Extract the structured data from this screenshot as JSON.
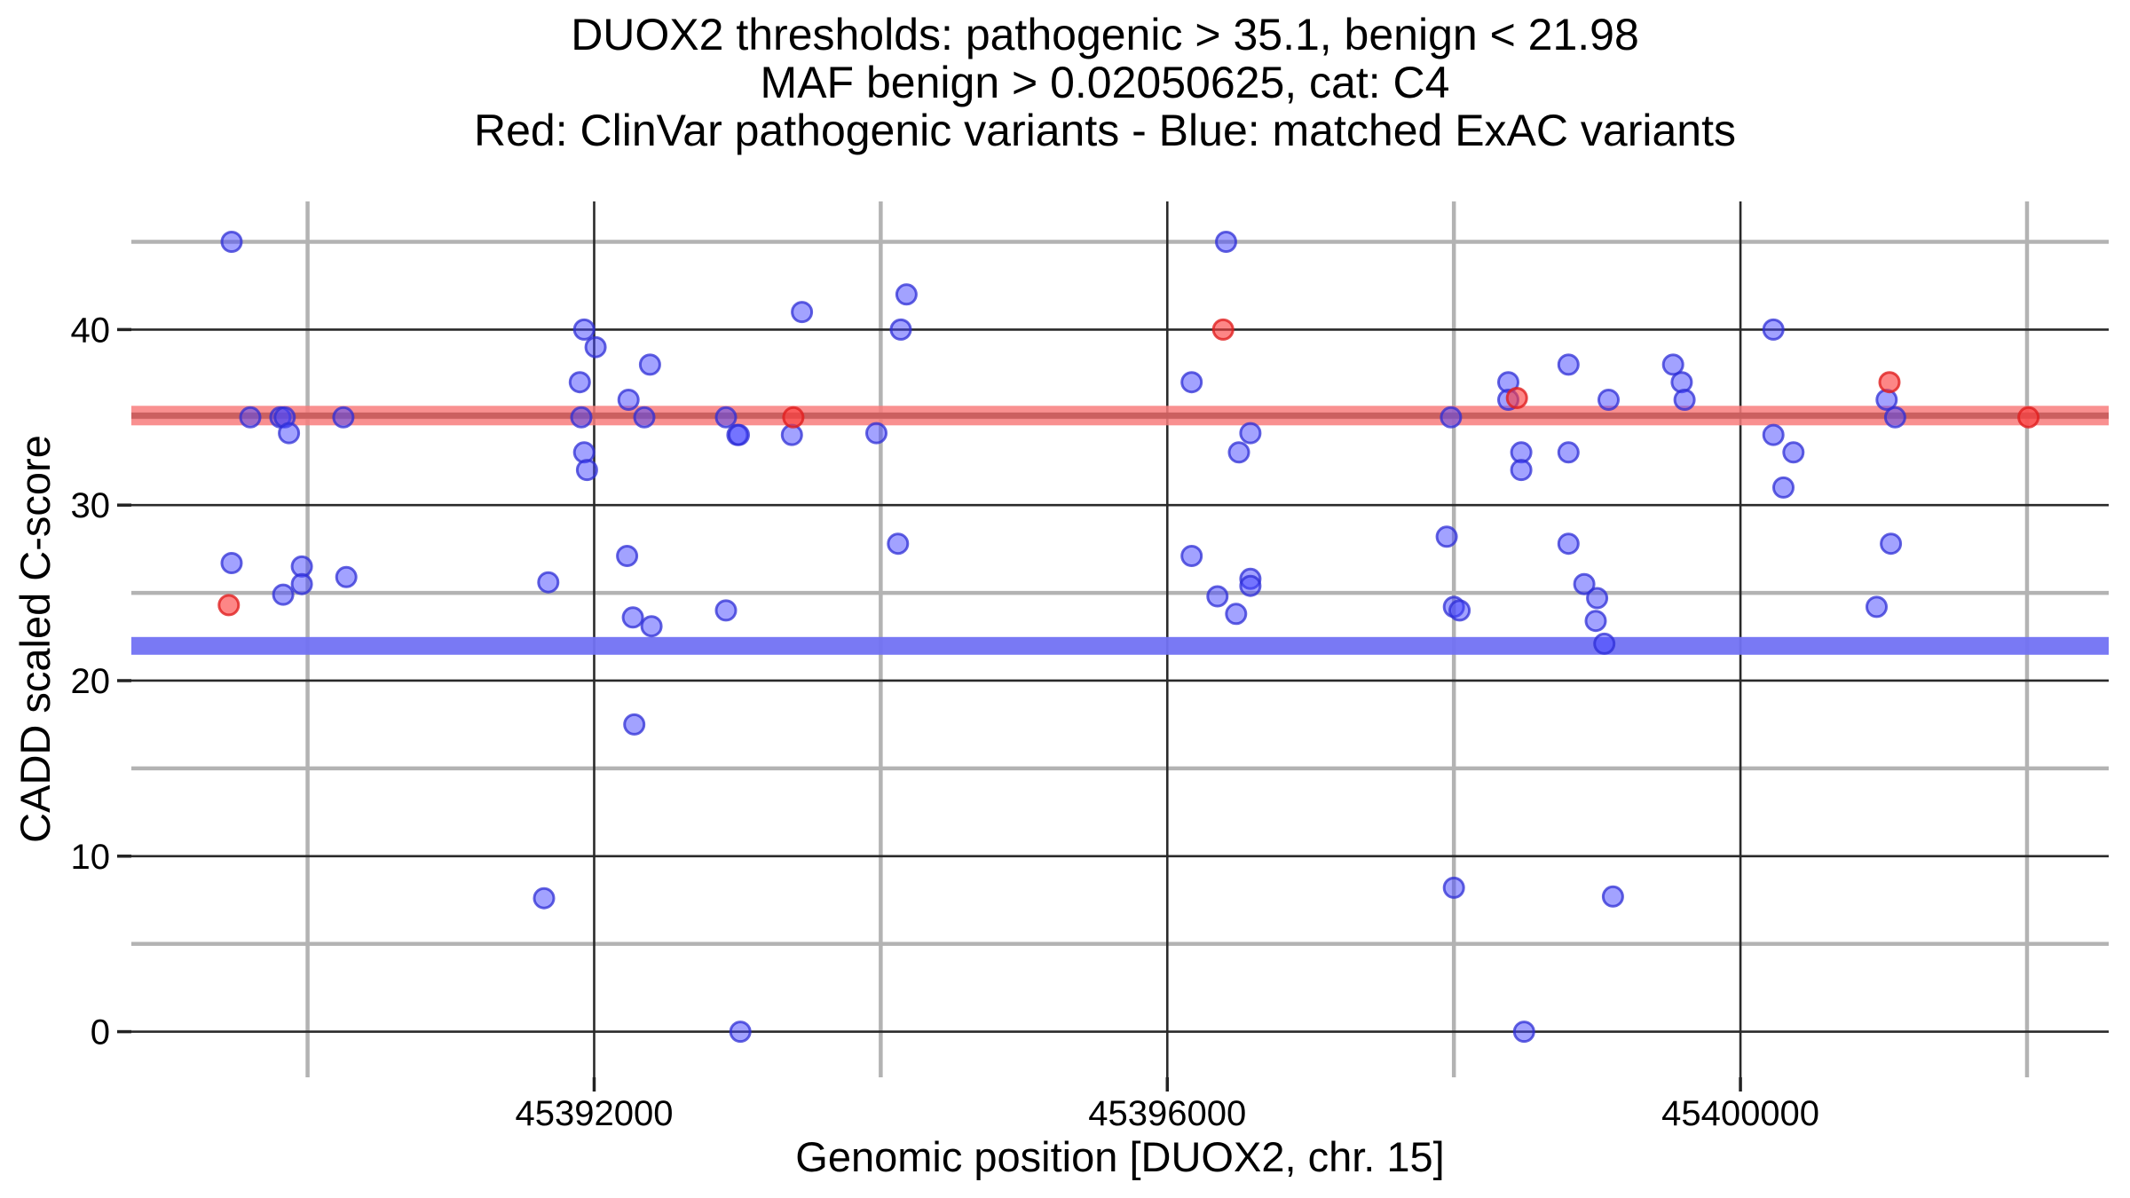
{
  "title": {
    "line1": "DUOX2 thresholds: pathogenic > 35.1, benign < 21.98",
    "line2": "MAF benign > 0.02050625, cat: C4",
    "line3": "Red: ClinVar pathogenic variants - Blue: matched ExAC variants"
  },
  "x_axis": {
    "label": "Genomic position [DUOX2, chr. 15]",
    "tick_labels": [
      "45392000",
      "45396000",
      "45400000"
    ]
  },
  "y_axis": {
    "label": "CADD scaled C-score",
    "tick_labels": [
      "0",
      "10",
      "20",
      "30",
      "40"
    ]
  },
  "thresholds": {
    "pathogenic_cutoff": 35.1,
    "benign_cutoff": 21.98,
    "maf_benign_cutoff": 0.02050625,
    "category": "C4",
    "gene": "DUOX2",
    "chromosome": "15"
  },
  "colors": {
    "background": "#ffffff",
    "grid_major": "#2a2a2a",
    "grid_minor": "#b3b3b3",
    "red_band": "#f87c7c",
    "red_band_line": "#c85e5e",
    "blue_band": "#7272f3",
    "blue_point_fill": "#4545ff",
    "blue_point_stroke": "#2d2dd6",
    "red_point_fill": "#fb3b3b",
    "red_point_stroke": "#e01f1f",
    "text": "#000000"
  },
  "chart_data": {
    "type": "scatter",
    "title": "DUOX2 thresholds: pathogenic > 35.1, benign < 21.98 | MAF benign > 0.02050625, cat: C4 | Red: ClinVar pathogenic variants - Blue: matched ExAC variants",
    "xlabel": "Genomic position [DUOX2, chr. 15]",
    "ylabel": "CADD scaled C-score",
    "xlim": [
      45388770,
      45402570
    ],
    "ylim": [
      -2.6,
      47.3
    ],
    "x_ticks": [
      45392000,
      45396000,
      45400000
    ],
    "x_minor_ticks": [
      45390000,
      45394000,
      45398000,
      45402000
    ],
    "y_ticks": [
      0,
      10,
      20,
      30,
      40
    ],
    "y_minor_ticks": [
      5,
      15,
      25,
      35,
      45
    ],
    "grid": true,
    "legend_position": "none",
    "hlines": [
      {
        "name": "pathogenic-threshold",
        "value": 35.1,
        "color_key": "red"
      },
      {
        "name": "benign-threshold",
        "value": 21.98,
        "color_key": "blue"
      }
    ],
    "series": [
      {
        "name": "matched ExAC variants",
        "color_key": "blue",
        "points": [
          [
            45389470,
            45
          ],
          [
            45389600,
            35
          ],
          [
            45389810,
            35
          ],
          [
            45389840,
            35
          ],
          [
            45389870,
            34.1
          ],
          [
            45390250,
            35
          ],
          [
            45389470,
            26.7
          ],
          [
            45389960,
            26.5
          ],
          [
            45389960,
            25.5
          ],
          [
            45389830,
            24.9
          ],
          [
            45390270,
            25.9
          ],
          [
            45391680,
            25.6
          ],
          [
            45391650,
            7.6
          ],
          [
            45392280,
            17.5
          ],
          [
            45391930,
            40
          ],
          [
            45392010,
            39
          ],
          [
            45392390,
            38
          ],
          [
            45391900,
            37
          ],
          [
            45392240,
            36
          ],
          [
            45391910,
            35
          ],
          [
            45392350,
            35
          ],
          [
            45391930,
            33
          ],
          [
            45391950,
            32
          ],
          [
            45392230,
            27.1
          ],
          [
            45392270,
            23.6
          ],
          [
            45392400,
            23.1
          ],
          [
            45392920,
            35
          ],
          [
            45393000,
            34
          ],
          [
            45393010,
            34
          ],
          [
            45393380,
            34
          ],
          [
            45393450,
            41
          ],
          [
            45393020,
            0
          ],
          [
            45392920,
            24
          ],
          [
            45394180,
            42
          ],
          [
            45394140,
            40
          ],
          [
            45393970,
            34.1
          ],
          [
            45394120,
            27.8
          ],
          [
            45396410,
            45
          ],
          [
            45396170,
            37
          ],
          [
            45396580,
            34.1
          ],
          [
            45396500,
            33
          ],
          [
            45396170,
            27.1
          ],
          [
            45396580,
            25.8
          ],
          [
            45396580,
            25.4
          ],
          [
            45396350,
            24.8
          ],
          [
            45396480,
            23.8
          ],
          [
            45397980,
            35
          ],
          [
            45397950,
            28.2
          ],
          [
            45398000,
            24.2
          ],
          [
            45398040,
            24
          ],
          [
            45398380,
            37
          ],
          [
            45398380,
            36
          ],
          [
            45398800,
            38
          ],
          [
            45398470,
            33
          ],
          [
            45398800,
            33
          ],
          [
            45398470,
            32
          ],
          [
            45398800,
            27.8
          ],
          [
            45398000,
            8.2
          ],
          [
            45398490,
            0
          ],
          [
            45398910,
            25.5
          ],
          [
            45399000,
            24.7
          ],
          [
            45398990,
            23.4
          ],
          [
            45399050,
            22.1
          ],
          [
            45399110,
            7.7
          ],
          [
            45399080,
            36
          ],
          [
            45399530,
            38
          ],
          [
            45399590,
            37
          ],
          [
            45399610,
            36
          ],
          [
            45400230,
            40
          ],
          [
            45400230,
            34
          ],
          [
            45400370,
            33
          ],
          [
            45400300,
            31
          ],
          [
            45401020,
            36
          ],
          [
            45401080,
            35
          ],
          [
            45401050,
            27.8
          ],
          [
            45400950,
            24.2
          ]
        ]
      },
      {
        "name": "ClinVar pathogenic variants",
        "color_key": "red",
        "points": [
          [
            45389450,
            24.3
          ],
          [
            45393390,
            35
          ],
          [
            45396390,
            40
          ],
          [
            45398440,
            36.1
          ],
          [
            45401040,
            37
          ],
          [
            45402010,
            35
          ]
        ]
      }
    ]
  }
}
